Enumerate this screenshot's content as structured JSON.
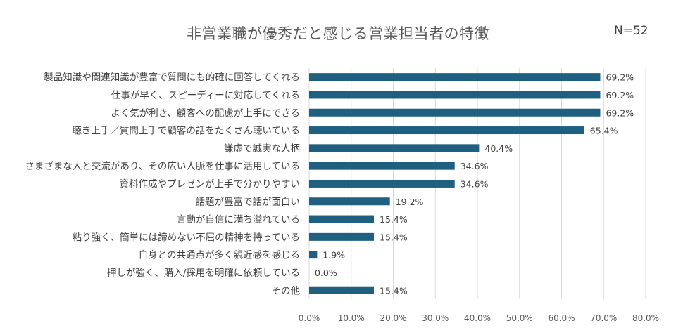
{
  "chart_data": {
    "type": "bar",
    "orientation": "horizontal",
    "title": "非営業職が優秀だと感じる営業担当者の特徴",
    "sample_size": "N=52",
    "categories": [
      "製品知識や関連知識が豊富で質問にも的確に回答してくれる",
      "仕事が早く、スピーディーに対応してくれる",
      "よく気が利き、顧客への配慮が上手にできる",
      "聴き上手／質問上手で顧客の話をたくさん聴いている",
      "謙虚で誠実な人柄",
      "さまざまな人と交流があり、その広い人脈を仕事に活用している",
      "資料作成やプレゼンが上手で分かりやすい",
      "話題が豊富で話が面白い",
      "言動が自信に満ち溢れている",
      "粘り強く、簡単には諦めない不屈の精神を持っている",
      "自身との共通点が多く親近感を感じる",
      "押しが強く、購入/採用を明確に依頼している",
      "その他"
    ],
    "values": [
      69.2,
      69.2,
      69.2,
      65.4,
      40.4,
      34.6,
      34.6,
      19.2,
      15.4,
      15.4,
      1.9,
      0.0,
      15.4
    ],
    "value_labels": [
      "69.2%",
      "69.2%",
      "69.2%",
      "65.4%",
      "40.4%",
      "34.6%",
      "34.6%",
      "19.2%",
      "15.4%",
      "15.4%",
      "1.9%",
      "0.0%",
      "15.4%"
    ],
    "xlim": [
      0,
      80
    ],
    "x_ticks": [
      "0.0%",
      "10.0%",
      "20.0%",
      "30.0%",
      "40.0%",
      "50.0%",
      "60.0%",
      "70.0%",
      "80.0%"
    ],
    "grid": "vertical",
    "bar_color": "#1f5f7f",
    "grid_color": "#d9d9d9"
  }
}
